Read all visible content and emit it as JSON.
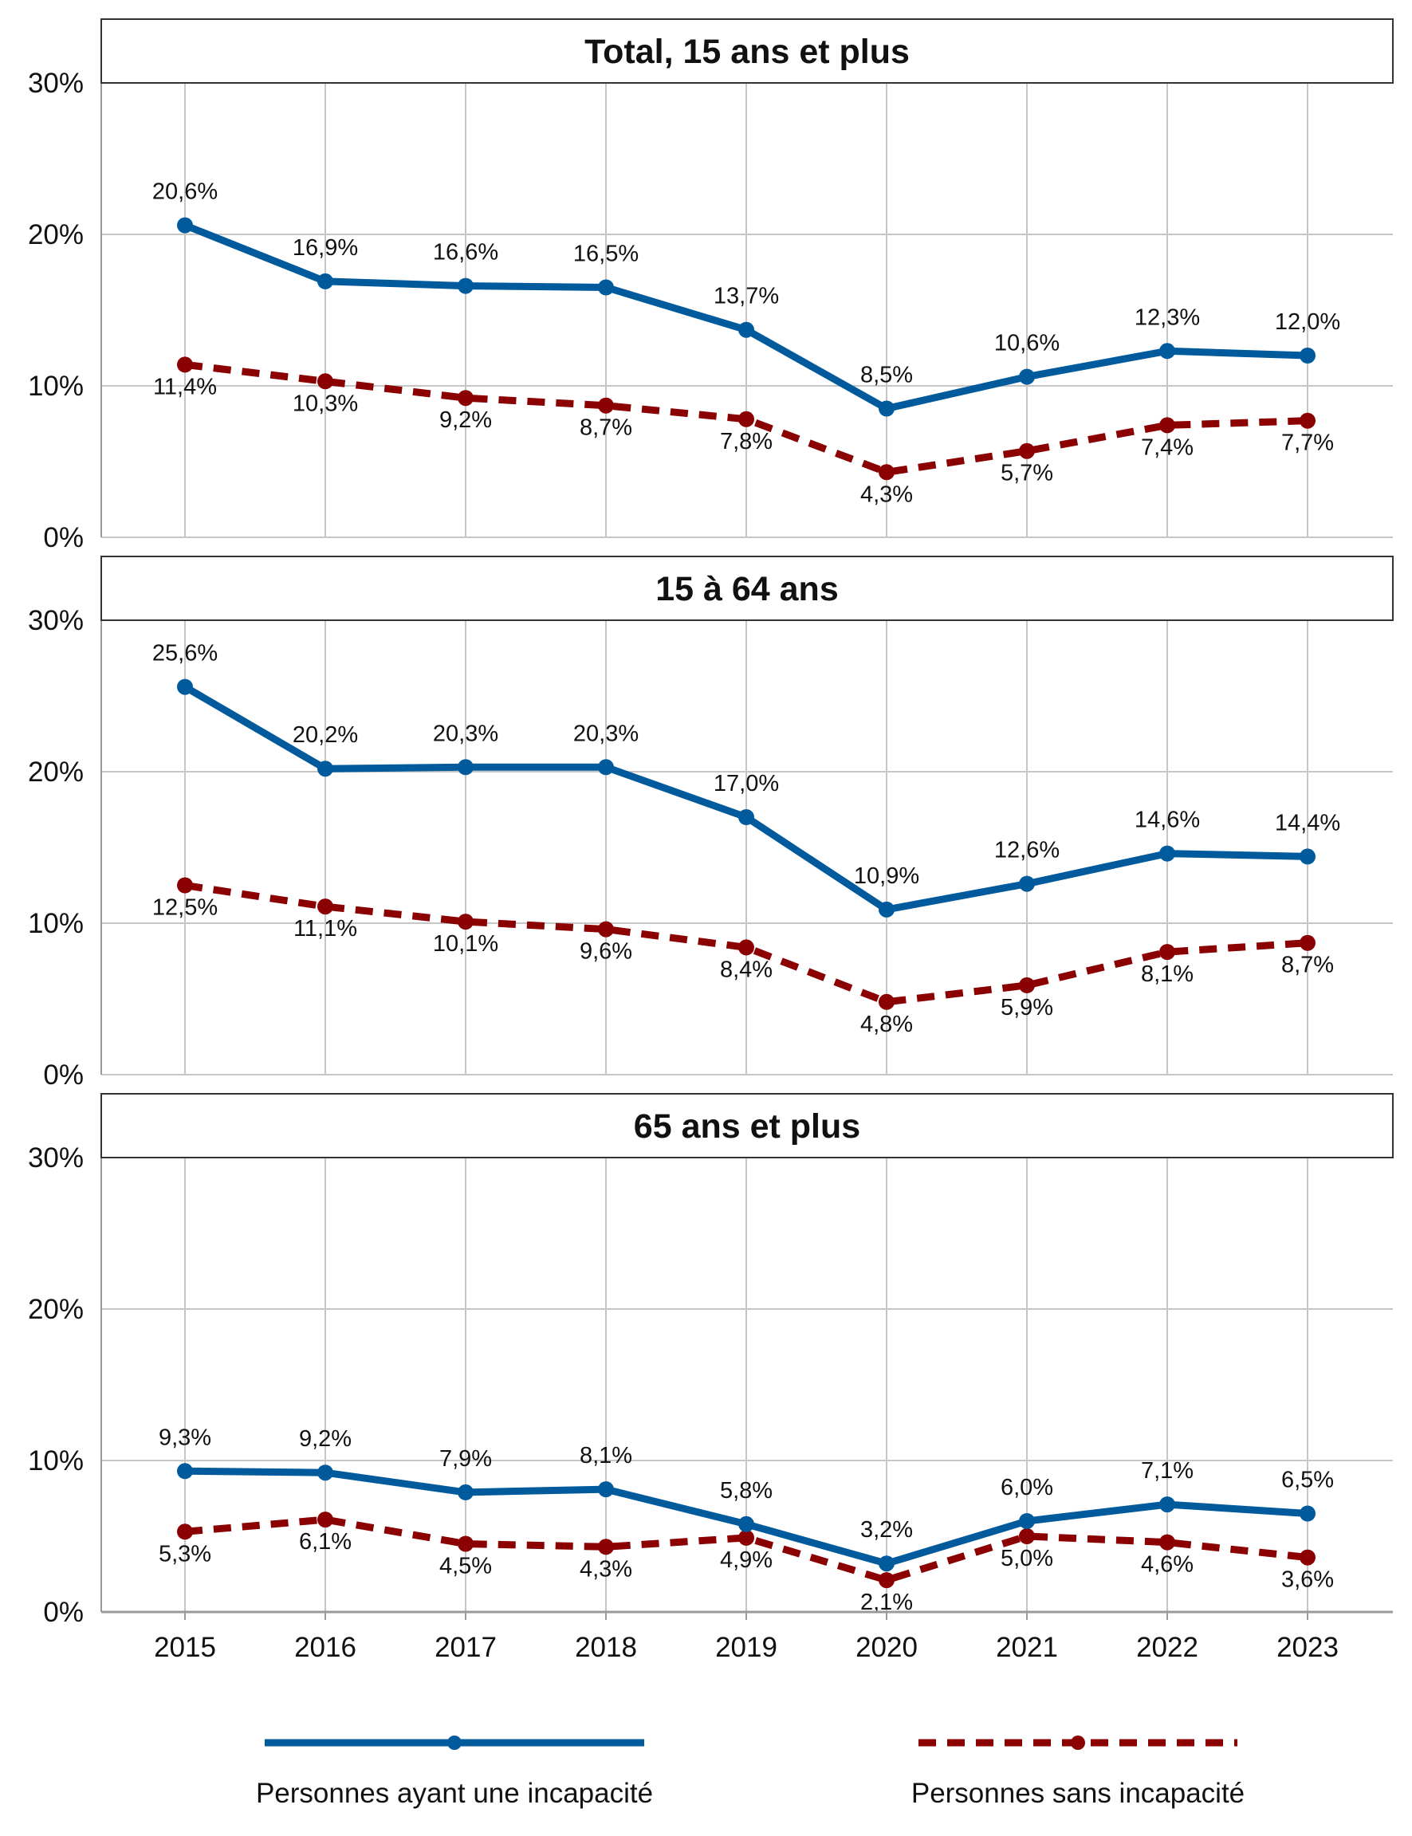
{
  "chart_data": {
    "type": "line",
    "x": [
      "2015",
      "2016",
      "2017",
      "2018",
      "2019",
      "2020",
      "2021",
      "2022",
      "2023"
    ],
    "ylim": [
      0,
      30
    ],
    "yticks": [
      "0%",
      "10%",
      "20%",
      "30%"
    ],
    "grid": true,
    "legend_position": "bottom",
    "colors": {
      "with": "#005a9c",
      "without": "#8b0000"
    },
    "series_names": [
      "Personnes ayant une incapacité",
      "Personnes sans incapacité"
    ],
    "panels": [
      {
        "title": "Total, 15 ans et plus",
        "series": [
          {
            "name": "Personnes ayant une incapacité",
            "values": [
              20.6,
              16.9,
              16.6,
              16.5,
              13.7,
              8.5,
              10.6,
              12.3,
              12.0
            ],
            "labels": [
              "20,6%",
              "16,9%",
              "16,6%",
              "16,5%",
              "13,7%",
              "8,5%",
              "10,6%",
              "12,3%",
              "12,0%"
            ]
          },
          {
            "name": "Personnes sans incapacité",
            "values": [
              11.4,
              10.3,
              9.2,
              8.7,
              7.8,
              4.3,
              5.7,
              7.4,
              7.7
            ],
            "labels": [
              "11,4%",
              "10,3%",
              "9,2%",
              "8,7%",
              "7,8%",
              "4,3%",
              "5,7%",
              "7,4%",
              "7,7%"
            ]
          }
        ]
      },
      {
        "title": "15 à 64 ans",
        "series": [
          {
            "name": "Personnes ayant une incapacité",
            "values": [
              25.6,
              20.2,
              20.3,
              20.3,
              17.0,
              10.9,
              12.6,
              14.6,
              14.4
            ],
            "labels": [
              "25,6%",
              "20,2%",
              "20,3%",
              "20,3%",
              "17,0%",
              "10,9%",
              "12,6%",
              "14,6%",
              "14,4%"
            ]
          },
          {
            "name": "Personnes sans incapacité",
            "values": [
              12.5,
              11.1,
              10.1,
              9.6,
              8.4,
              4.8,
              5.9,
              8.1,
              8.7
            ],
            "labels": [
              "12,5%",
              "11,1%",
              "10,1%",
              "9,6%",
              "8,4%",
              "4,8%",
              "5,9%",
              "8,1%",
              "8,7%"
            ]
          }
        ]
      },
      {
        "title": "65 ans et plus",
        "series": [
          {
            "name": "Personnes ayant une incapacité",
            "values": [
              9.3,
              9.2,
              7.9,
              8.1,
              5.8,
              3.2,
              6.0,
              7.1,
              6.5
            ],
            "labels": [
              "9,3%",
              "9,2%",
              "7,9%",
              "8,1%",
              "5,8%",
              "3,2%",
              "6,0%",
              "7,1%",
              "6,5%"
            ]
          },
          {
            "name": "Personnes sans incapacité",
            "values": [
              5.3,
              6.1,
              4.5,
              4.3,
              4.9,
              2.1,
              5.0,
              4.6,
              3.6
            ],
            "labels": [
              "5,3%",
              "6,1%",
              "4,5%",
              "4,3%",
              "4,9%",
              "2,1%",
              "5,0%",
              "4,6%",
              "3,6%"
            ]
          }
        ]
      }
    ]
  }
}
